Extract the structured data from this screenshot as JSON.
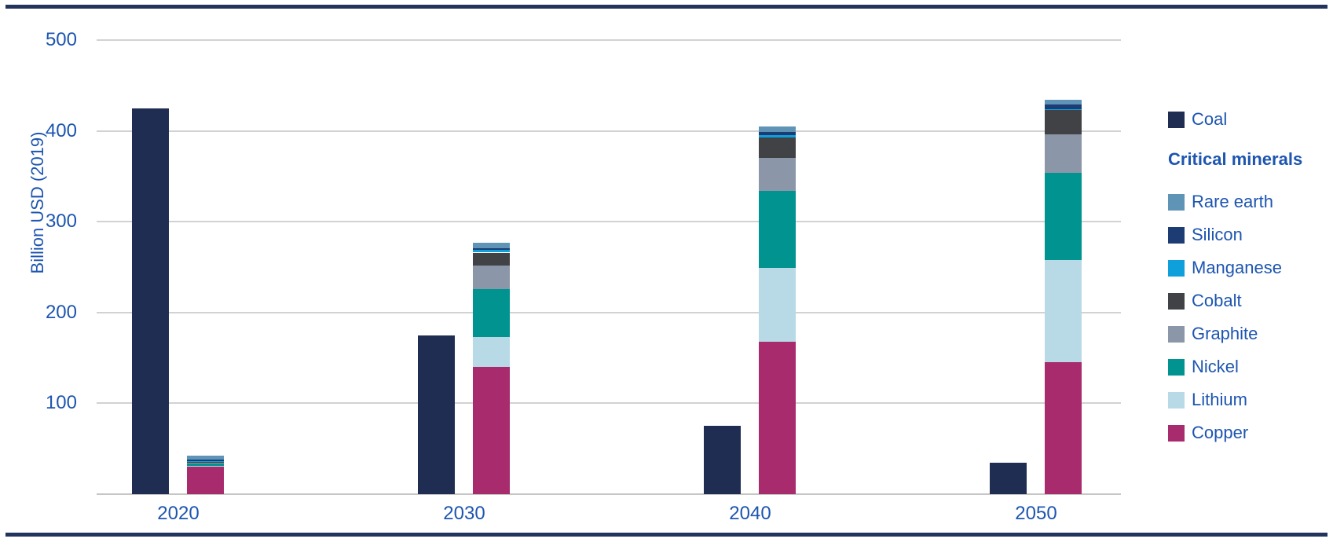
{
  "figure": {
    "background": "#ffffff",
    "rule_color": "#22335c",
    "text_color": "#1d55b0"
  },
  "chart_data": {
    "type": "bar",
    "variant": "grouped-pair: single Coal bar beside stacked critical-minerals bar, per year",
    "title": "",
    "xlabel": "",
    "ylabel": "Billion USD (2019)",
    "categories": [
      "2020",
      "2030",
      "2040",
      "2050"
    ],
    "yticks": [
      100,
      200,
      300,
      400,
      500
    ],
    "ylim": [
      0,
      520
    ],
    "grid": true,
    "legend_position": "right",
    "coal": {
      "name": "Coal",
      "color": "#1f2d52",
      "values": [
        425,
        175,
        75,
        35
      ]
    },
    "stack_order_bottom_to_top": [
      "Copper",
      "Lithium",
      "Nickel",
      "Graphite",
      "Cobalt",
      "Manganese",
      "Silicon",
      "Rare earth"
    ],
    "series": [
      {
        "name": "Rare earth",
        "color": "#6094b6",
        "values": [
          4,
          6,
          6,
          5
        ]
      },
      {
        "name": "Silicon",
        "color": "#1e3c74",
        "values": [
          2,
          2,
          4,
          5
        ]
      },
      {
        "name": "Manganese",
        "color": "#0ea0db",
        "values": [
          0.5,
          3,
          2,
          1
        ]
      },
      {
        "name": "Cobalt",
        "color": "#404245",
        "values": [
          0.5,
          14,
          23,
          27
        ]
      },
      {
        "name": "Graphite",
        "color": "#8b96a9",
        "values": [
          0.5,
          26,
          36,
          42
        ]
      },
      {
        "name": "Nickel",
        "color": "#009390",
        "values": [
          3,
          53,
          85,
          96
        ]
      },
      {
        "name": "Lithium",
        "color": "#b8dae6",
        "values": [
          1.5,
          33,
          81,
          113
        ]
      },
      {
        "name": "Copper",
        "color": "#a82b6e",
        "values": [
          30,
          140,
          168,
          145
        ]
      }
    ],
    "stack_totals": [
      42,
      277,
      405,
      434
    ],
    "legend": {
      "coal_label": "Coal",
      "group_heading": "Critical minerals",
      "items_top_to_bottom": [
        "Rare earth",
        "Silicon",
        "Manganese",
        "Cobalt",
        "Graphite",
        "Nickel",
        "Lithium",
        "Copper"
      ]
    }
  }
}
